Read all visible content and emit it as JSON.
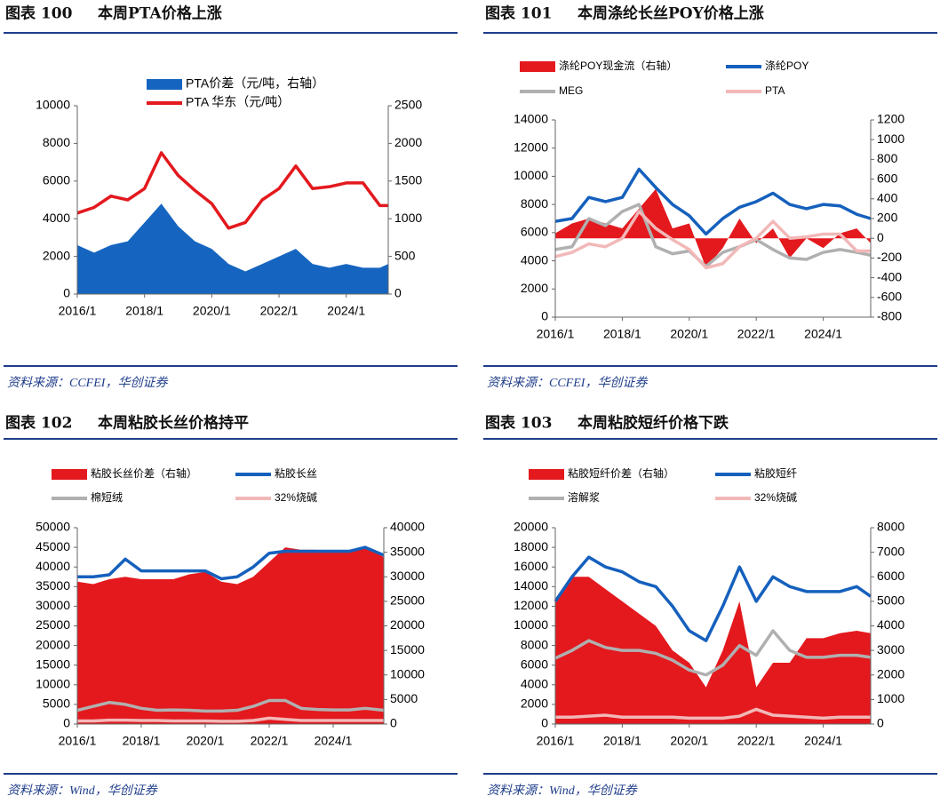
{
  "chart_data": [
    {
      "type": "line",
      "label": "图表 100",
      "title": "本周PTA价格上涨",
      "source": "资料来源：CCFEI，华创证券",
      "x": [
        "2016/1",
        "2016/7",
        "2017/1",
        "2017/7",
        "2018/1",
        "2018/7",
        "2019/1",
        "2019/7",
        "2020/1",
        "2020/7",
        "2021/1",
        "2021/7",
        "2022/1",
        "2022/7",
        "2023/1",
        "2023/7",
        "2024/1",
        "2024/7",
        "2025/1",
        "2025/4"
      ],
      "xlim": [
        "2016/1",
        "2025/4"
      ],
      "xticks": [
        "2016/1",
        "2018/1",
        "2020/1",
        "2022/1",
        "2024/1"
      ],
      "ylim": [
        0,
        10000
      ],
      "yticks": [
        0,
        2000,
        4000,
        6000,
        8000,
        10000
      ],
      "y2lim": [
        0,
        2500
      ],
      "y2ticks": [
        0,
        500,
        1000,
        1500,
        2000,
        2500
      ],
      "series": [
        {
          "name": "PTA价差（元/吨，右轴）",
          "color": "#1565c0",
          "style": "area",
          "axis": "y2",
          "values": [
            650,
            550,
            650,
            700,
            950,
            1200,
            900,
            700,
            600,
            400,
            300,
            400,
            500,
            600,
            400,
            350,
            400,
            350,
            350,
            400
          ]
        },
        {
          "name": "PTA 华东（元/吨）",
          "color": "#e3191e",
          "style": "line",
          "values": [
            4300,
            4600,
            5200,
            5000,
            5600,
            7500,
            6300,
            5500,
            4800,
            3500,
            3800,
            5000,
            5600,
            6800,
            5600,
            5700,
            5900,
            5900,
            4700,
            4700
          ]
        }
      ]
    },
    {
      "type": "line",
      "label": "图表 101",
      "title": "本周涤纶长丝POY价格上涨",
      "source": "资料来源：CCFEI，华创证券",
      "x": [
        "2016/1",
        "2016/7",
        "2017/1",
        "2017/7",
        "2018/1",
        "2018/7",
        "2019/1",
        "2019/7",
        "2020/1",
        "2020/7",
        "2021/1",
        "2021/7",
        "2022/1",
        "2022/7",
        "2023/1",
        "2023/7",
        "2024/1",
        "2024/7",
        "2025/1",
        "2025/6"
      ],
      "xlim": [
        "2016/1",
        "2025/6"
      ],
      "xticks": [
        "2016/1",
        "2018/1",
        "2020/1",
        "2022/1",
        "2024/1"
      ],
      "ylim": [
        0,
        14000
      ],
      "yticks": [
        0,
        2000,
        4000,
        6000,
        8000,
        10000,
        12000,
        14000
      ],
      "y2lim": [
        -800,
        1200
      ],
      "y2ticks": [
        -800,
        -600,
        -400,
        -200,
        0,
        200,
        400,
        600,
        800,
        1000,
        1200
      ],
      "series": [
        {
          "name": "涤纶POY现金流（右轴）",
          "color": "#e3191e",
          "style": "area",
          "axis": "y2",
          "values": [
            50,
            150,
            200,
            150,
            100,
            300,
            500,
            100,
            150,
            -300,
            -100,
            200,
            -50,
            100,
            -200,
            0,
            -100,
            50,
            100,
            -50
          ]
        },
        {
          "name": "涤纶POY",
          "color": "#1560bd",
          "style": "line",
          "values": [
            6800,
            7000,
            8500,
            8200,
            8500,
            10500,
            9200,
            8000,
            7200,
            5900,
            7000,
            7800,
            8200,
            8800,
            8000,
            7700,
            8000,
            7900,
            7300,
            7000
          ]
        },
        {
          "name": "MEG",
          "color": "#b0b0b0",
          "style": "line",
          "values": [
            4800,
            5000,
            7000,
            6500,
            7500,
            8000,
            5000,
            4500,
            4700,
            3600,
            4600,
            5000,
            5500,
            4800,
            4200,
            4100,
            4600,
            4800,
            4600,
            4400
          ]
        },
        {
          "name": "PTA",
          "color": "#f2b8b8",
          "style": "line",
          "values": [
            4300,
            4600,
            5200,
            5000,
            5600,
            7500,
            6300,
            5500,
            4800,
            3500,
            3800,
            5000,
            5600,
            6800,
            5600,
            5700,
            5900,
            5900,
            4700,
            4700
          ]
        }
      ]
    },
    {
      "type": "line",
      "label": "图表 102",
      "title": "本周粘胶长丝价格持平",
      "source": "资料来源：Wind，华创证券",
      "x": [
        "2016/1",
        "2016/7",
        "2017/1",
        "2017/7",
        "2018/1",
        "2018/7",
        "2019/1",
        "2019/7",
        "2020/1",
        "2020/7",
        "2021/1",
        "2021/7",
        "2022/1",
        "2022/7",
        "2023/1",
        "2023/7",
        "2024/1",
        "2024/7",
        "2025/1",
        "2025/8"
      ],
      "xlim": [
        "2016/1",
        "2025/8"
      ],
      "xticks": [
        "2016/1",
        "2018/1",
        "2020/1",
        "2022/1",
        "2024/1"
      ],
      "ylim": [
        0,
        50000
      ],
      "yticks": [
        0,
        5000,
        10000,
        15000,
        20000,
        25000,
        30000,
        35000,
        40000,
        45000,
        50000
      ],
      "y2lim": [
        0,
        40000
      ],
      "y2ticks": [
        0,
        5000,
        10000,
        15000,
        20000,
        25000,
        30000,
        35000,
        40000
      ],
      "series": [
        {
          "name": "粘胶长丝价差（右轴）",
          "color": "#e3191e",
          "style": "area",
          "axis": "y2",
          "values": [
            29000,
            28500,
            29500,
            30000,
            29500,
            29500,
            29500,
            30500,
            31000,
            29000,
            28500,
            30000,
            33000,
            36000,
            35500,
            35500,
            35000,
            35500,
            36000,
            34000
          ]
        },
        {
          "name": "粘胶长丝",
          "color": "#1560bd",
          "style": "line",
          "values": [
            37500,
            37500,
            38000,
            42000,
            39000,
            39000,
            39000,
            39000,
            39000,
            37000,
            37500,
            40000,
            43500,
            44000,
            44000,
            44000,
            44000,
            44000,
            45000,
            43000
          ]
        },
        {
          "name": "棉短绒",
          "color": "#b0b0b0",
          "style": "line",
          "values": [
            3500,
            4500,
            5500,
            5000,
            4000,
            3500,
            3600,
            3500,
            3300,
            3300,
            3500,
            4500,
            6000,
            6000,
            4000,
            3700,
            3600,
            3600,
            4000,
            3500
          ]
        },
        {
          "name": "32%烧碱",
          "color": "#f2b8b8",
          "style": "line",
          "values": [
            800,
            800,
            1000,
            1000,
            900,
            900,
            800,
            800,
            800,
            700,
            700,
            900,
            1500,
            1200,
            900,
            900,
            900,
            900,
            900,
            900
          ]
        }
      ]
    },
    {
      "type": "line",
      "label": "图表 103",
      "title": "本周粘胶短纤价格下跌",
      "source": "资料来源：Wind，华创证券",
      "x": [
        "2016/1",
        "2016/7",
        "2017/1",
        "2017/7",
        "2018/1",
        "2018/7",
        "2019/1",
        "2019/7",
        "2020/1",
        "2020/7",
        "2021/1",
        "2021/7",
        "2022/1",
        "2022/7",
        "2023/1",
        "2023/7",
        "2024/1",
        "2024/7",
        "2025/1",
        "2025/6"
      ],
      "xlim": [
        "2016/1",
        "2025/6"
      ],
      "xticks": [
        "2016/1",
        "2018/1",
        "2020/1",
        "2022/1",
        "2024/1"
      ],
      "ylim": [
        0,
        20000
      ],
      "yticks": [
        0,
        2000,
        4000,
        6000,
        8000,
        10000,
        12000,
        14000,
        16000,
        18000,
        20000
      ],
      "y2lim": [
        0,
        8000
      ],
      "y2ticks": [
        0,
        1000,
        2000,
        3000,
        4000,
        5000,
        6000,
        7000,
        8000
      ],
      "series": [
        {
          "name": "粘胶短纤价差（右轴）",
          "color": "#e3191e",
          "style": "area",
          "axis": "y2",
          "values": [
            5000,
            6000,
            6000,
            5500,
            5000,
            4500,
            4000,
            3000,
            2500,
            1500,
            3000,
            5000,
            1500,
            2500,
            2500,
            3500,
            3500,
            3700,
            3800,
            3700
          ]
        },
        {
          "name": "粘胶短纤",
          "color": "#1560bd",
          "style": "line",
          "values": [
            12500,
            15000,
            17000,
            16000,
            15500,
            14500,
            14000,
            12000,
            9500,
            8500,
            12000,
            16000,
            12500,
            15000,
            14000,
            13500,
            13500,
            13500,
            14000,
            13000
          ]
        },
        {
          "name": "溶解浆",
          "color": "#b0b0b0",
          "style": "line",
          "values": [
            6700,
            7500,
            8500,
            7800,
            7500,
            7500,
            7200,
            6500,
            5500,
            5000,
            6000,
            8000,
            7000,
            9500,
            7500,
            6800,
            6800,
            7000,
            7000,
            6800
          ]
        },
        {
          "name": "32%烧碱",
          "color": "#f2b8b8",
          "style": "line",
          "values": [
            700,
            700,
            800,
            900,
            700,
            700,
            700,
            700,
            600,
            600,
            600,
            800,
            1500,
            900,
            800,
            700,
            600,
            700,
            700,
            700
          ]
        }
      ]
    }
  ]
}
